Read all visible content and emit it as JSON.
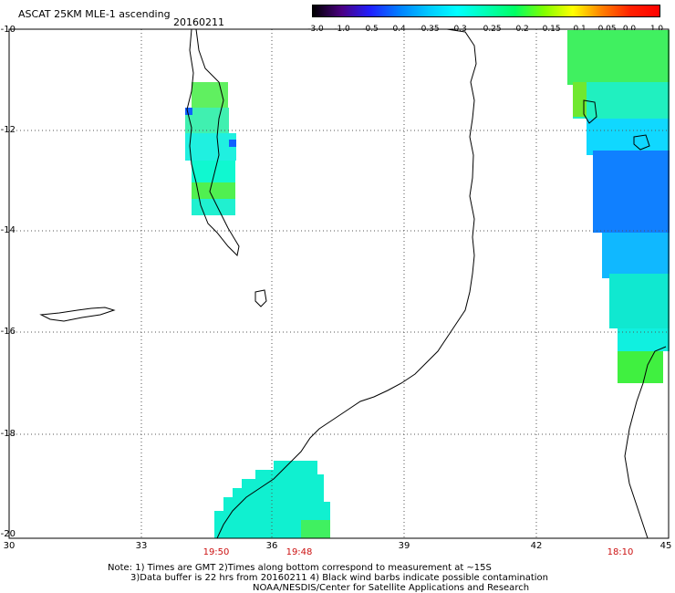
{
  "header": {
    "title": "ASCAT 25KM MLE-1 ascending",
    "date": "20160211"
  },
  "colorbar": {
    "labels": [
      "-3.0",
      "-1.0",
      "-0.5",
      "-0.4",
      "-0.35",
      "-0.3",
      "-0.25",
      "-0.2",
      "-0.15",
      "-0.1",
      "-0.05",
      "0.0",
      "1.0"
    ],
    "colors": [
      "#000000",
      "#4b0082",
      "#2020ff",
      "#0080ff",
      "#00c8ff",
      "#00ffff",
      "#00ffb4",
      "#00ff64",
      "#80ff00",
      "#ffff00",
      "#ff8000",
      "#ff2000",
      "#ff0000"
    ]
  },
  "axes": {
    "y_labels": [
      "-10",
      "-12",
      "-14",
      "-16",
      "-18",
      "-20"
    ],
    "x_labels": [
      "30",
      "33",
      "36",
      "39",
      "42",
      "45"
    ]
  },
  "times": [
    "19:50",
    "19:48",
    "18:10"
  ],
  "notes": {
    "line1": "Note: 1) Times are GMT 2)Times along bottom correspond to measurement at ~15S",
    "line2": "3)Data buffer is 22 hrs from 20160211 4) Black wind barbs indicate possible contamination",
    "line3": "NOAA/NESDIS/Center for Satellite Applications and Research"
  }
}
